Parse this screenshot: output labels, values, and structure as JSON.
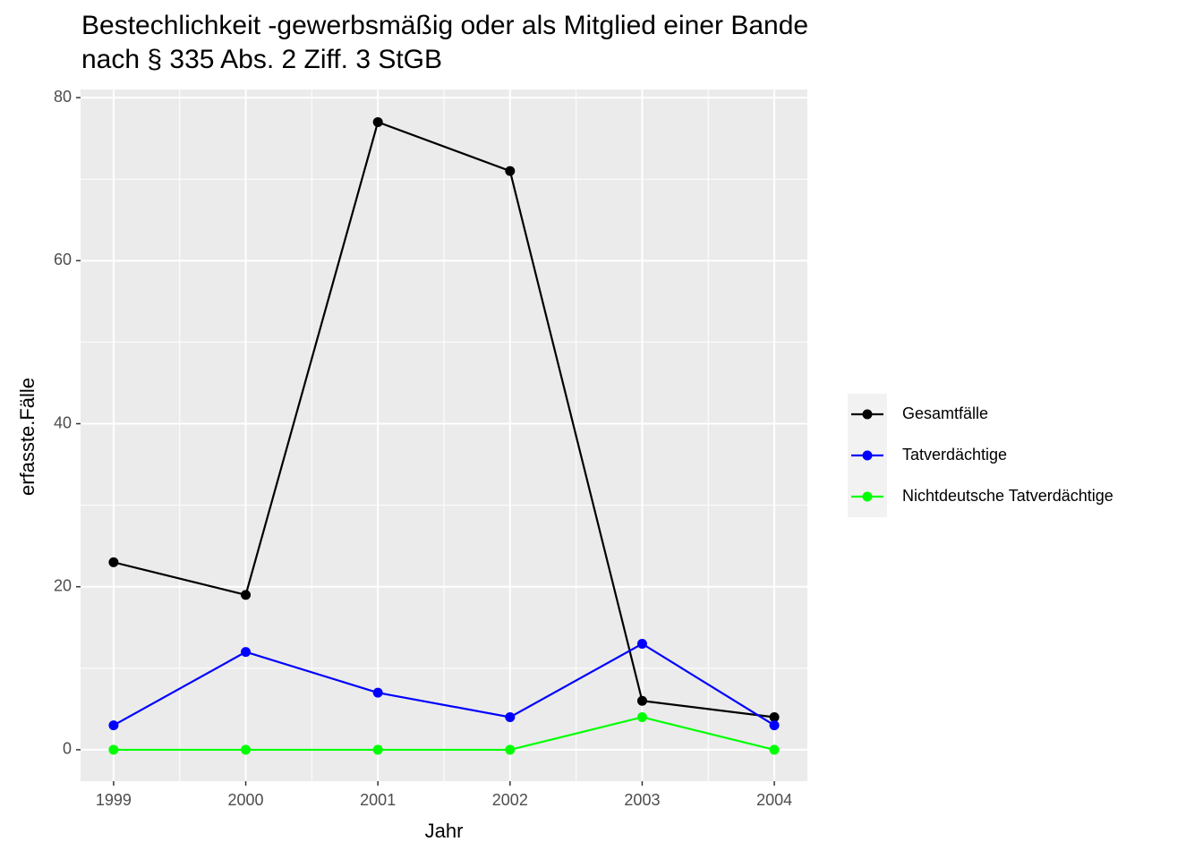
{
  "chart_data": {
    "type": "line",
    "title": [
      "Bestechlichkeit -gewerbsmäßig oder als Mitglied einer Bande",
      "nach § 335 Abs. 2 Ziff. 3 StGB"
    ],
    "x_label": "Jahr",
    "y_label": "erfasste.Fälle",
    "x": [
      1999,
      2000,
      2001,
      2002,
      2003,
      2004
    ],
    "series": [
      {
        "name": "Gesamtfälle",
        "color": "#000000",
        "values": [
          23,
          19,
          77,
          71,
          6,
          4
        ]
      },
      {
        "name": "Tatverdächtige",
        "color": "#0000ff",
        "values": [
          3,
          12,
          7,
          4,
          13,
          3
        ]
      },
      {
        "name": "Nichtdeutsche Tatverdächtige",
        "color": "#00ff00",
        "values": [
          0,
          0,
          0,
          0,
          4,
          0
        ]
      }
    ],
    "xlim": [
      1998.75,
      2004.25
    ],
    "xticks": [
      1999,
      2000,
      2001,
      2002,
      2003,
      2004
    ],
    "ylim": [
      -3.85,
      81
    ],
    "yticks": [
      0,
      20,
      40,
      60,
      80
    ],
    "grid": true,
    "legend": "right"
  }
}
